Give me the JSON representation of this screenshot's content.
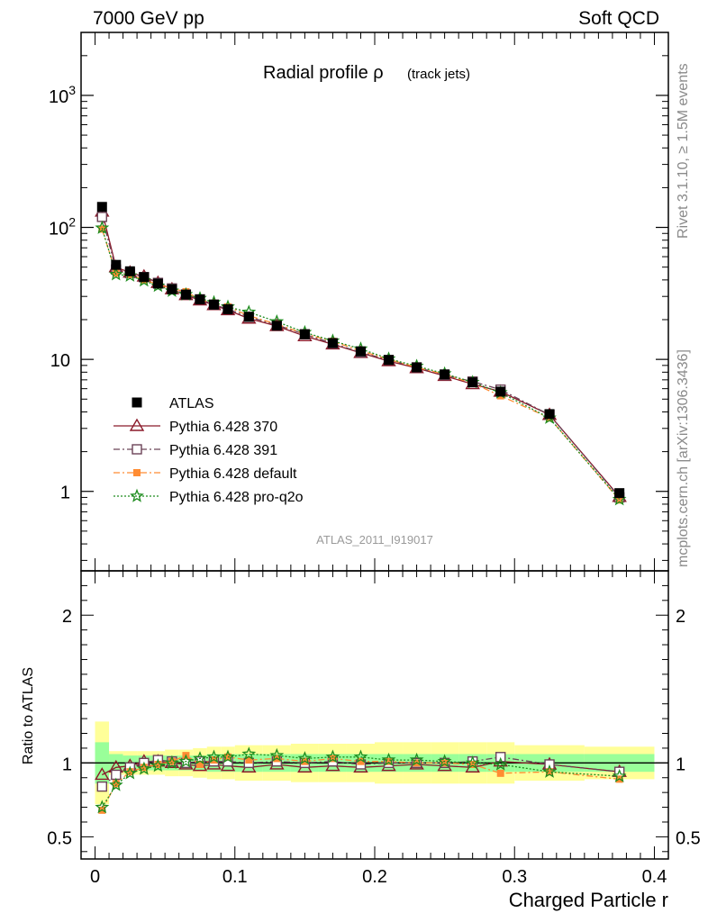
{
  "header": {
    "left": "7000 GeV pp",
    "right": "Soft QCD"
  },
  "side_text": {
    "top": "Rivet 3.1.10, ≥ 1.5M events",
    "bottom": "mcplots.cern.ch [arXiv:1306.3436]"
  },
  "watermark": "ATLAS_2011_I919017",
  "chart_data": {
    "type": "scatter",
    "title": "Radial profile ρ",
    "title_note": "(track jets)",
    "xlabel": "Charged Particle r",
    "ylabel_ratio": "Ratio to ATLAS",
    "xlim": [
      -0.01,
      0.41
    ],
    "ylim_main": [
      0.25,
      3000
    ],
    "ylog_main": true,
    "ylim_ratio": [
      0.35,
      2.3
    ],
    "x_ticks": [
      {
        "v": 0,
        "label": "0"
      },
      {
        "v": 0.1,
        "label": "0.1"
      },
      {
        "v": 0.2,
        "label": "0.2"
      },
      {
        "v": 0.3,
        "label": "0.3"
      },
      {
        "v": 0.4,
        "label": "0.4"
      }
    ],
    "y_ticks_main": [
      {
        "v": 1,
        "label": "1"
      },
      {
        "v": 10,
        "label": "10"
      },
      {
        "v": 100,
        "label": "10",
        "sup": "2"
      },
      {
        "v": 1000,
        "label": "10",
        "sup": "3"
      }
    ],
    "y_ticks_ratio": [
      {
        "v": 0.5,
        "label": "0.5"
      },
      {
        "v": 1,
        "label": "1"
      },
      {
        "v": 2,
        "label": "2"
      }
    ],
    "legend_position": "bottom-left",
    "x": [
      0.005,
      0.015,
      0.025,
      0.035,
      0.045,
      0.055,
      0.065,
      0.075,
      0.085,
      0.095,
      0.11,
      0.13,
      0.15,
      0.17,
      0.19,
      0.21,
      0.23,
      0.25,
      0.27,
      0.29,
      0.325,
      0.375
    ],
    "x_edges": [
      0,
      0.01,
      0.02,
      0.03,
      0.04,
      0.05,
      0.06,
      0.07,
      0.08,
      0.09,
      0.1,
      0.12,
      0.14,
      0.16,
      0.18,
      0.2,
      0.22,
      0.24,
      0.26,
      0.28,
      0.3,
      0.35,
      0.4
    ],
    "ref_band_inner": [
      0.14,
      0.06,
      0.05,
      0.05,
      0.05,
      0.05,
      0.05,
      0.05,
      0.06,
      0.06,
      0.06,
      0.06,
      0.06,
      0.06,
      0.06,
      0.06,
      0.06,
      0.06,
      0.06,
      0.06,
      0.06,
      0.06
    ],
    "ref_band_outer": [
      0.28,
      0.08,
      0.08,
      0.08,
      0.08,
      0.09,
      0.09,
      0.1,
      0.11,
      0.11,
      0.12,
      0.12,
      0.13,
      0.13,
      0.13,
      0.14,
      0.14,
      0.14,
      0.14,
      0.14,
      0.12,
      0.11
    ],
    "series": [
      {
        "name": "ATLAS",
        "color": "#000000",
        "marker": "square-filled",
        "line": "none",
        "values": [
          143,
          52,
          46.5,
          42,
          37.5,
          34,
          31,
          28.5,
          26,
          24,
          21,
          18,
          15.5,
          13.3,
          11.5,
          9.9,
          8.7,
          7.7,
          6.7,
          5.7,
          3.85,
          0.97
        ]
      },
      {
        "name": "Pythia 6.428 370",
        "color": "#8b1a2a",
        "marker": "triangle-open",
        "line": "solid",
        "values": [
          132,
          50,
          45.5,
          42.5,
          38,
          34,
          30.7,
          28,
          25.8,
          23.6,
          20.4,
          17.9,
          15,
          13,
          11.2,
          9.7,
          8.6,
          7.5,
          6.5,
          5.7,
          3.8,
          0.91
        ],
        "ratio": [
          0.92,
          0.97,
          0.98,
          1.01,
          1.01,
          1.0,
          0.99,
          0.98,
          0.99,
          0.98,
          0.97,
          0.99,
          0.97,
          0.98,
          0.97,
          0.98,
          0.99,
          0.98,
          0.97,
          1.01,
          0.99,
          0.94
        ]
      },
      {
        "name": "Pythia 6.428 391",
        "color": "#6b4357",
        "marker": "square-open",
        "line": "dashdot",
        "values": [
          120,
          48,
          45,
          42,
          38,
          34.5,
          31,
          28.5,
          26,
          24,
          21,
          18.2,
          15.5,
          13.2,
          11.3,
          9.9,
          8.7,
          7.6,
          6.8,
          5.9,
          3.8,
          0.9
        ],
        "ratio": [
          0.84,
          0.92,
          0.97,
          1.0,
          1.02,
          1.01,
          1.0,
          1.01,
          1.01,
          1.01,
          1.0,
          1.01,
          1.0,
          1.01,
          0.99,
          1.0,
          1.0,
          1.0,
          1.01,
          1.04,
          0.99,
          0.94
        ]
      },
      {
        "name": "Pythia 6.428 default",
        "color": "#ff8c33",
        "marker": "square-filled-small",
        "line": "dashdot",
        "values": [
          97,
          45,
          44,
          40,
          37,
          34.5,
          32.5,
          28.5,
          26.5,
          25,
          21.4,
          18.5,
          15.6,
          13.7,
          11.6,
          10,
          8.7,
          7.7,
          6.6,
          5.3,
          3.6,
          0.86
        ],
        "ratio": [
          0.68,
          0.86,
          0.94,
          0.97,
          0.99,
          1.01,
          1.05,
          0.99,
          1.02,
          1.04,
          1.02,
          1.03,
          1.01,
          1.03,
          1.01,
          1.01,
          1.0,
          1.0,
          0.99,
          0.93,
          0.94,
          0.89
        ]
      },
      {
        "name": "Pythia 6.428 pro-q2o",
        "color": "#1e8c1e",
        "marker": "star-open",
        "line": "dotted",
        "values": [
          99,
          44,
          43,
          39.5,
          36,
          33,
          31,
          29,
          27,
          25,
          22.8,
          19.3,
          16,
          13.8,
          12,
          10.1,
          8.9,
          7.8,
          6.7,
          5.6,
          3.6,
          0.87
        ],
        "ratio": [
          0.7,
          0.85,
          0.93,
          0.96,
          0.98,
          1.0,
          1.01,
          1.03,
          1.04,
          1.04,
          1.06,
          1.05,
          1.03,
          1.04,
          1.04,
          1.02,
          1.02,
          1.01,
          1.0,
          0.99,
          0.94,
          0.91
        ]
      }
    ]
  }
}
